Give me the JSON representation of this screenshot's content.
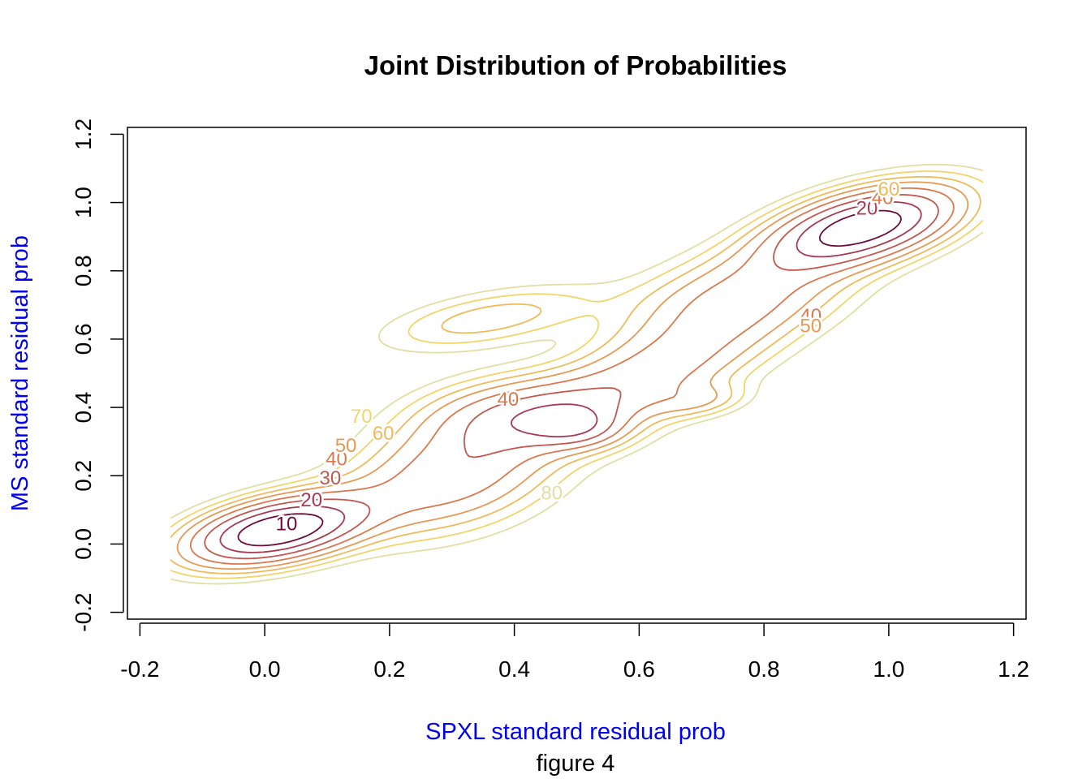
{
  "chart_data": {
    "type": "contour",
    "title": "Joint Distribution of Probabilities",
    "xlabel": "SPXL standard residual prob",
    "ylabel": "MS standard residual prob",
    "caption": "figure 4",
    "xlim": [
      -0.22,
      1.22
    ],
    "ylim": [
      -0.22,
      1.22
    ],
    "xticks": [
      "-0.2",
      "0.0",
      "0.2",
      "0.4",
      "0.6",
      "0.8",
      "1.0",
      "1.2"
    ],
    "yticks": [
      "-0.2",
      "0.0",
      "0.2",
      "0.4",
      "0.6",
      "0.8",
      "1.0",
      "1.2"
    ],
    "grid": false,
    "label_color": "#0000ee",
    "levels": [
      {
        "level": "10",
        "color": "#6e0a3c"
      },
      {
        "level": "20",
        "color": "#a63a52"
      },
      {
        "level": "30",
        "color": "#c3574f"
      },
      {
        "level": "40",
        "color": "#d9794f"
      },
      {
        "level": "50",
        "color": "#e59a55"
      },
      {
        "level": "60",
        "color": "#edbb5c"
      },
      {
        "level": "70",
        "color": "#f0d56a"
      },
      {
        "level": "80",
        "color": "#dfe0a4"
      }
    ],
    "contour_labels": [
      {
        "text": "10",
        "x": 0.035,
        "y": 0.055,
        "level_index": 0
      },
      {
        "text": "20",
        "x": 0.075,
        "y": 0.125,
        "level_index": 1
      },
      {
        "text": "30",
        "x": 0.105,
        "y": 0.19,
        "level_index": 2
      },
      {
        "text": "40",
        "x": 0.115,
        "y": 0.245,
        "level_index": 3
      },
      {
        "text": "50",
        "x": 0.13,
        "y": 0.285,
        "level_index": 4
      },
      {
        "text": "60",
        "x": 0.19,
        "y": 0.32,
        "level_index": 5
      },
      {
        "text": "70",
        "x": 0.155,
        "y": 0.37,
        "level_index": 6
      },
      {
        "text": "80",
        "x": 0.46,
        "y": 0.145,
        "level_index": 7
      },
      {
        "text": "40",
        "x": 0.39,
        "y": 0.42,
        "level_index": 3
      },
      {
        "text": "40",
        "x": 0.875,
        "y": 0.665,
        "level_index": 3
      },
      {
        "text": "50",
        "x": 0.875,
        "y": 0.635,
        "level_index": 4
      },
      {
        "text": "20",
        "x": 0.965,
        "y": 0.98,
        "level_index": 1
      },
      {
        "text": "40",
        "x": 0.99,
        "y": 1.01,
        "level_index": 3
      },
      {
        "text": "60",
        "x": 1.0,
        "y": 1.035,
        "level_index": 5
      }
    ]
  }
}
